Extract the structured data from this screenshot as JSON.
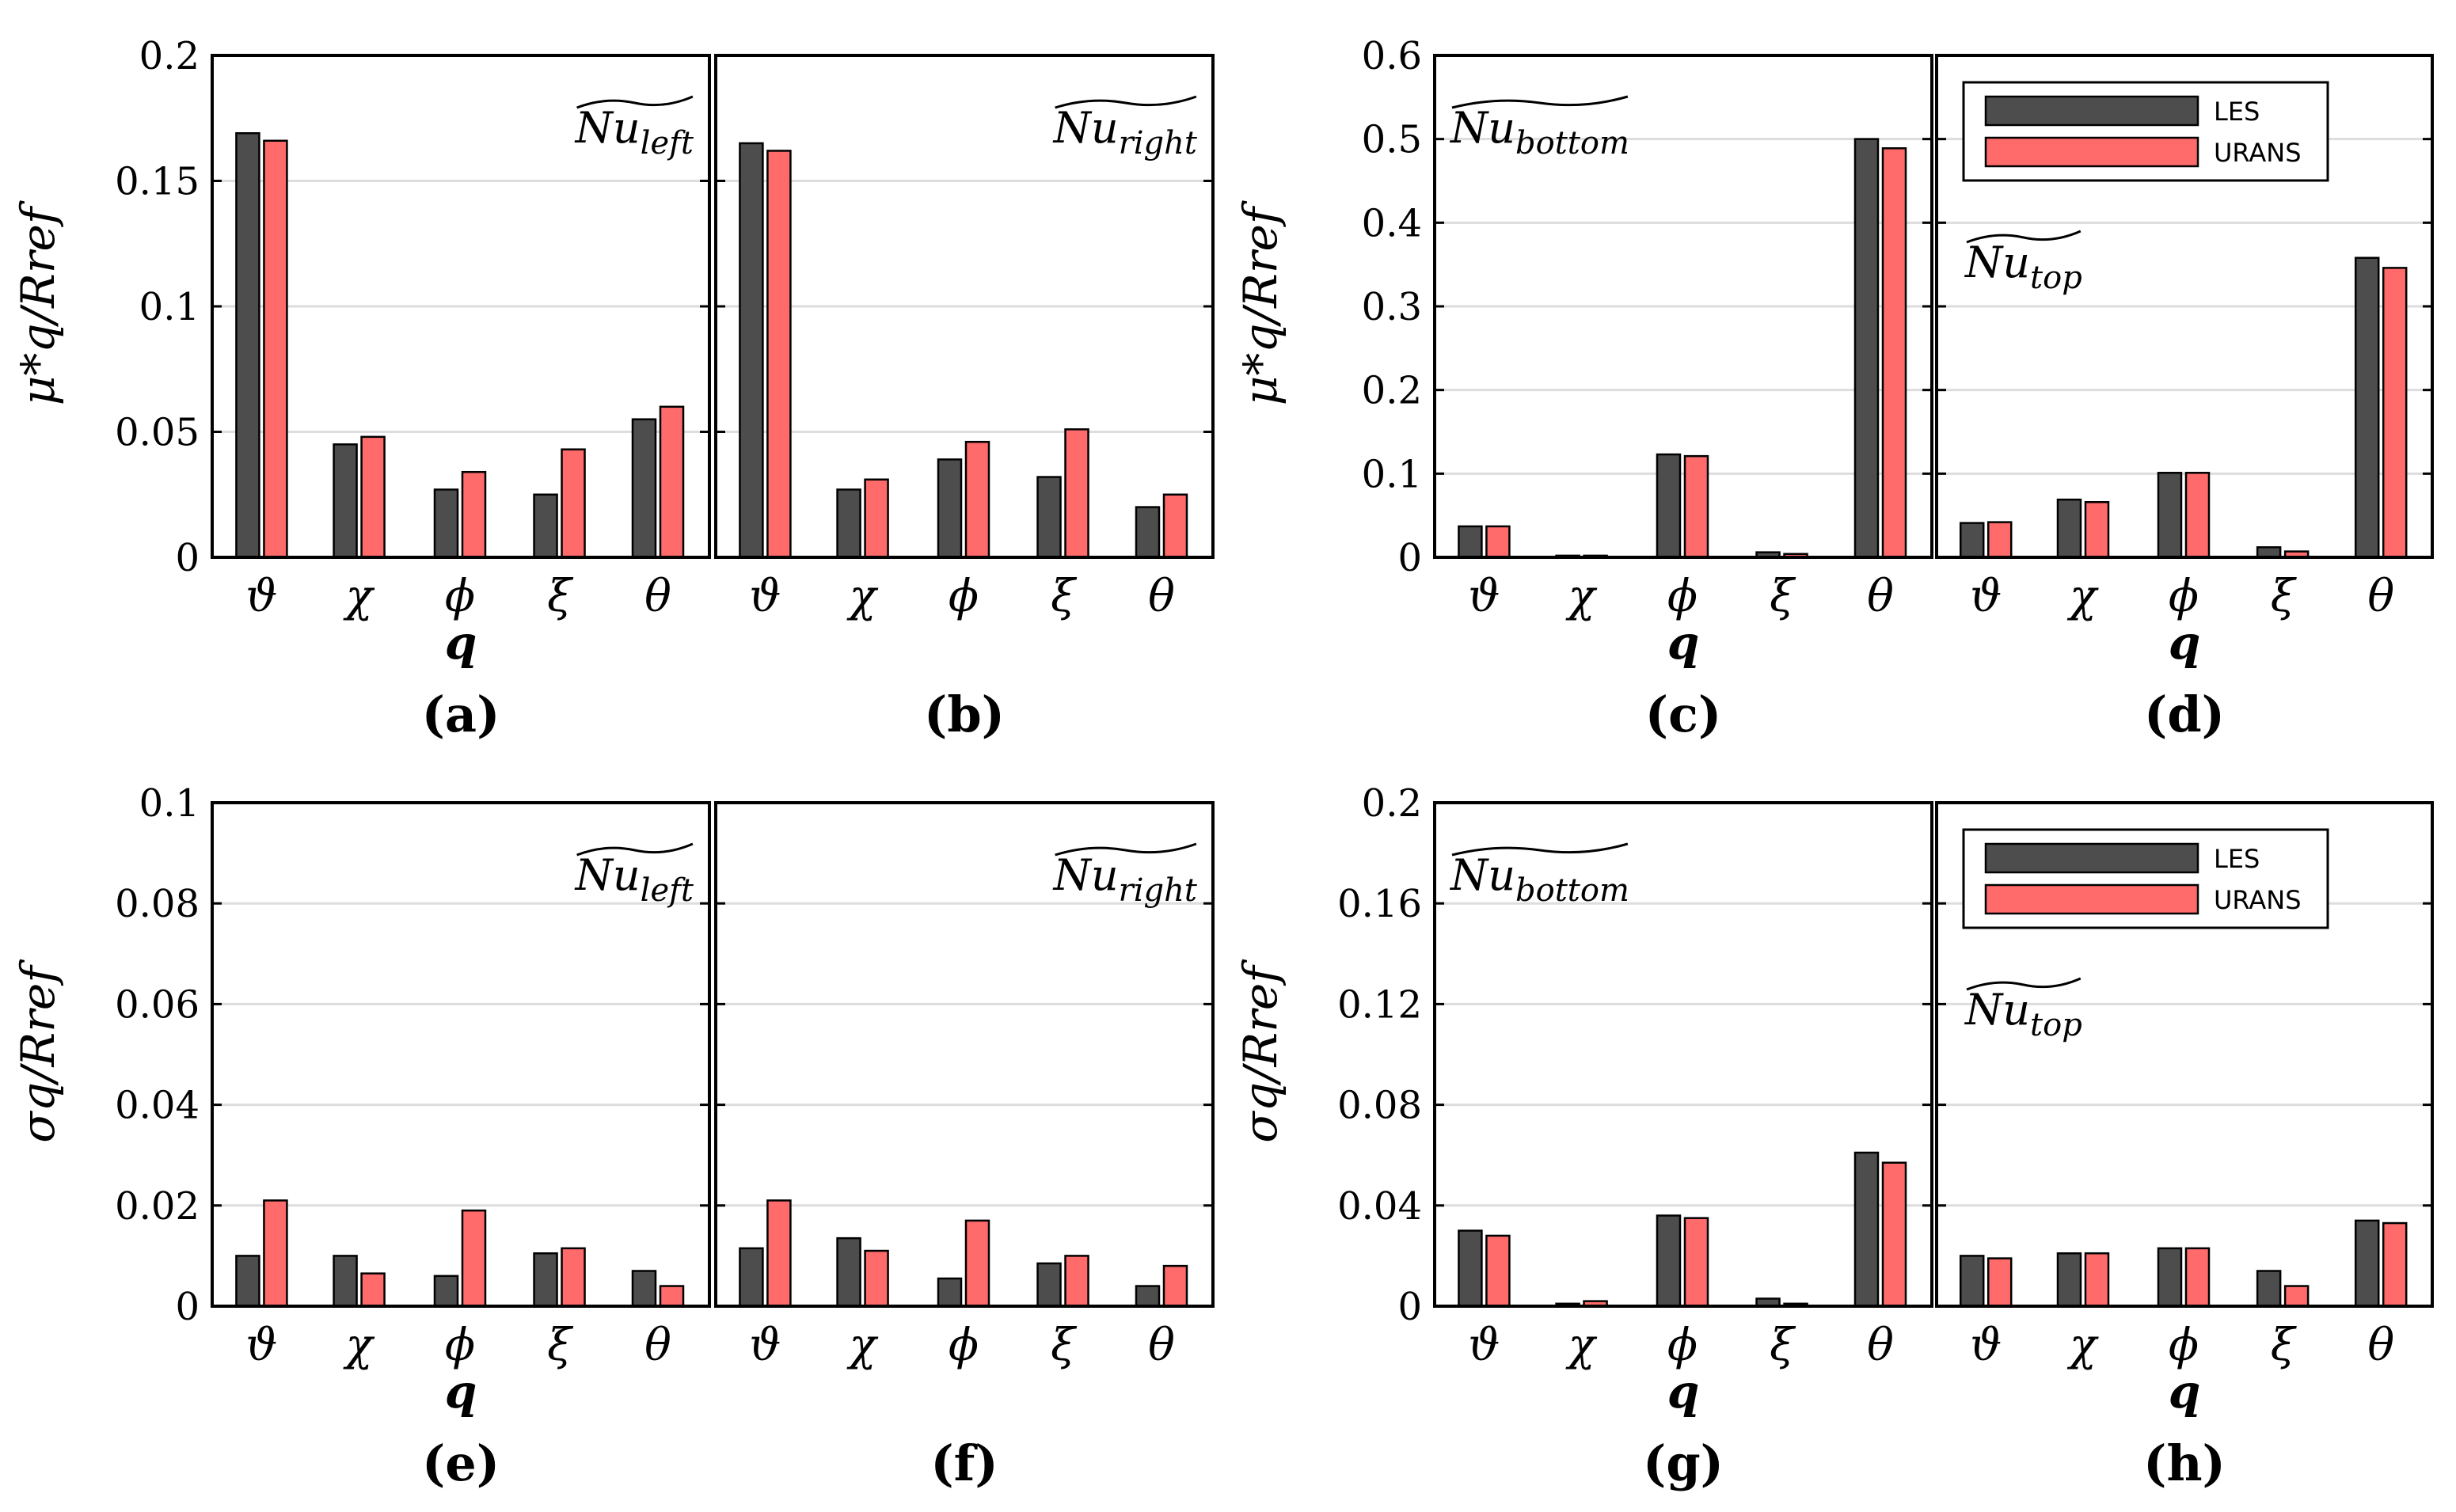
{
  "chart_data": [
    {
      "id": "a",
      "type": "bar",
      "panel_label": "(a)",
      "ylabel": "μ*q/Rref",
      "xlabel": "q",
      "annotation": {
        "base": "Nu",
        "sub": "left",
        "position": "top-right"
      },
      "categories": [
        "ϑ",
        "χ",
        "ϕ",
        "ξ",
        "θ"
      ],
      "ylim": [
        0,
        0.2
      ],
      "yticks": [
        0,
        0.05,
        0.1,
        0.15,
        0.2
      ],
      "ytick_labels": [
        "0",
        "0.05",
        "0.1",
        "0.15",
        "0.2"
      ],
      "series": [
        {
          "name": "LES",
          "values": [
            0.169,
            0.045,
            0.027,
            0.025,
            0.055
          ]
        },
        {
          "name": "URANS",
          "values": [
            0.166,
            0.048,
            0.034,
            0.043,
            0.06
          ]
        }
      ]
    },
    {
      "id": "b",
      "type": "bar",
      "panel_label": "(b)",
      "xlabel": "",
      "annotation": {
        "base": "Nu",
        "sub": "right",
        "position": "top-right"
      },
      "categories": [
        "ϑ",
        "χ",
        "ϕ",
        "ξ",
        "θ"
      ],
      "ylim": [
        0,
        0.2
      ],
      "yticks": [
        0,
        0.05,
        0.1,
        0.15,
        0.2
      ],
      "series": [
        {
          "name": "LES",
          "values": [
            0.165,
            0.027,
            0.039,
            0.032,
            0.02
          ]
        },
        {
          "name": "URANS",
          "values": [
            0.162,
            0.031,
            0.046,
            0.051,
            0.025
          ]
        }
      ]
    },
    {
      "id": "c",
      "type": "bar",
      "panel_label": "(c)",
      "ylabel": "μ*q/Rref",
      "xlabel": "q",
      "annotation": {
        "base": "Nu",
        "sub": "bottom",
        "position": "top-left"
      },
      "categories": [
        "ϑ",
        "χ",
        "ϕ",
        "ξ",
        "θ"
      ],
      "ylim": [
        0,
        0.6
      ],
      "yticks": [
        0,
        0.1,
        0.2,
        0.3,
        0.4,
        0.5,
        0.6
      ],
      "ytick_labels": [
        "0",
        "0.1",
        "0.2",
        "0.3",
        "0.4",
        "0.5",
        "0.6"
      ],
      "series": [
        {
          "name": "LES",
          "values": [
            0.037,
            0.002,
            0.123,
            0.006,
            0.5
          ]
        },
        {
          "name": "URANS",
          "values": [
            0.037,
            0.002,
            0.121,
            0.004,
            0.489
          ]
        }
      ]
    },
    {
      "id": "d",
      "type": "bar",
      "panel_label": "(d)",
      "xlabel": "q",
      "annotation": {
        "base": "Nu",
        "sub": "top",
        "position": "left"
      },
      "legend": {
        "entries": [
          "LES",
          "URANS"
        ],
        "position": "top-right"
      },
      "categories": [
        "ϑ",
        "χ",
        "ϕ",
        "ξ",
        "θ"
      ],
      "ylim": [
        0,
        0.6
      ],
      "yticks": [
        0,
        0.1,
        0.2,
        0.3,
        0.4,
        0.5,
        0.6
      ],
      "series": [
        {
          "name": "LES",
          "values": [
            0.041,
            0.069,
            0.101,
            0.012,
            0.358
          ]
        },
        {
          "name": "URANS",
          "values": [
            0.042,
            0.066,
            0.101,
            0.007,
            0.346
          ]
        }
      ]
    },
    {
      "id": "e",
      "type": "bar",
      "panel_label": "(e)",
      "ylabel": "σq/Rref",
      "xlabel": "q",
      "annotation": {
        "base": "Nu",
        "sub": "left",
        "position": "top-right"
      },
      "categories": [
        "ϑ",
        "χ",
        "ϕ",
        "ξ",
        "θ"
      ],
      "ylim": [
        0,
        0.1
      ],
      "yticks": [
        0,
        0.02,
        0.04,
        0.06,
        0.08,
        0.1
      ],
      "ytick_labels": [
        "0",
        "0.02",
        "0.04",
        "0.06",
        "0.08",
        "0.1"
      ],
      "series": [
        {
          "name": "LES",
          "values": [
            0.01,
            0.01,
            0.006,
            0.0105,
            0.007
          ]
        },
        {
          "name": "URANS",
          "values": [
            0.021,
            0.0065,
            0.019,
            0.0115,
            0.004
          ]
        }
      ]
    },
    {
      "id": "f",
      "type": "bar",
      "panel_label": "(f)",
      "xlabel": "",
      "annotation": {
        "base": "Nu",
        "sub": "right",
        "position": "top-right"
      },
      "categories": [
        "ϑ",
        "χ",
        "ϕ",
        "ξ",
        "θ"
      ],
      "ylim": [
        0,
        0.1
      ],
      "yticks": [
        0,
        0.02,
        0.04,
        0.06,
        0.08,
        0.1
      ],
      "series": [
        {
          "name": "LES",
          "values": [
            0.0115,
            0.0135,
            0.0055,
            0.0085,
            0.004
          ]
        },
        {
          "name": "URANS",
          "values": [
            0.021,
            0.011,
            0.017,
            0.01,
            0.008
          ]
        }
      ]
    },
    {
      "id": "g",
      "type": "bar",
      "panel_label": "(g)",
      "ylabel": "σq/Rref",
      "xlabel": "q",
      "annotation": {
        "base": "Nu",
        "sub": "bottom",
        "position": "top-left"
      },
      "categories": [
        "ϑ",
        "χ",
        "ϕ",
        "ξ",
        "θ"
      ],
      "ylim": [
        0,
        0.2
      ],
      "yticks": [
        0,
        0.04,
        0.08,
        0.12,
        0.16,
        0.2
      ],
      "ytick_labels": [
        "0",
        "0.04",
        "0.08",
        "0.12",
        "0.16",
        "0.2"
      ],
      "series": [
        {
          "name": "LES",
          "values": [
            0.03,
            0.001,
            0.036,
            0.003,
            0.061
          ]
        },
        {
          "name": "URANS",
          "values": [
            0.028,
            0.002,
            0.035,
            0.001,
            0.057
          ]
        }
      ]
    },
    {
      "id": "h",
      "type": "bar",
      "panel_label": "(h)",
      "xlabel": "q",
      "annotation": {
        "base": "Nu",
        "sub": "top",
        "position": "left"
      },
      "legend": {
        "entries": [
          "LES",
          "URANS"
        ],
        "position": "top-right"
      },
      "categories": [
        "ϑ",
        "χ",
        "ϕ",
        "ξ",
        "θ"
      ],
      "ylim": [
        0,
        0.2
      ],
      "yticks": [
        0,
        0.04,
        0.08,
        0.12,
        0.16,
        0.2
      ],
      "series": [
        {
          "name": "LES",
          "values": [
            0.02,
            0.021,
            0.023,
            0.014,
            0.034
          ]
        },
        {
          "name": "URANS",
          "values": [
            0.019,
            0.021,
            0.023,
            0.008,
            0.033
          ]
        }
      ]
    }
  ],
  "colors": {
    "LES": "#4d4d4d",
    "URANS": "#ff6b6b",
    "grid": "#dddddd",
    "axes": "#000000"
  }
}
